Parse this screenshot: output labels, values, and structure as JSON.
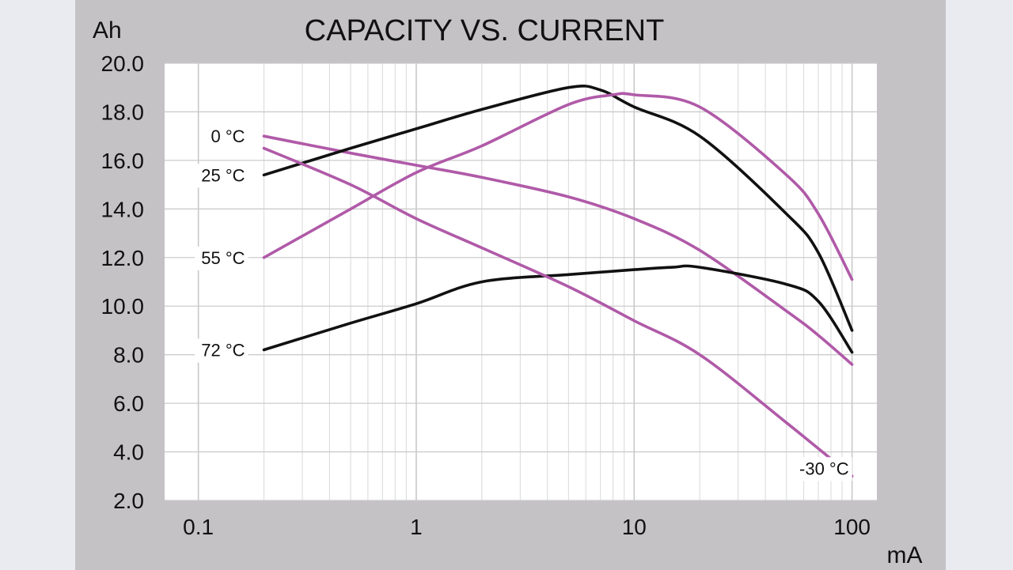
{
  "chart_data": {
    "type": "line",
    "title": "CAPACITY VS. CURRENT",
    "ylabel": "Ah",
    "xlabel": "mA",
    "xscale": "log",
    "xlim": [
      0.07,
      130
    ],
    "ylim": [
      2.0,
      20.0
    ],
    "grid": true,
    "x_ticks": [
      {
        "value": 0.1,
        "label": "0.1"
      },
      {
        "value": 1,
        "label": "1"
      },
      {
        "value": 10,
        "label": "10"
      },
      {
        "value": 100,
        "label": "100"
      }
    ],
    "y_ticks": [
      {
        "value": 2.0,
        "label": "2.0"
      },
      {
        "value": 4.0,
        "label": "4.0"
      },
      {
        "value": 6.0,
        "label": "6.0"
      },
      {
        "value": 8.0,
        "label": "8.0"
      },
      {
        "value": 10.0,
        "label": "10.0"
      },
      {
        "value": 12.0,
        "label": "12.0"
      },
      {
        "value": 14.0,
        "label": "14.0"
      },
      {
        "value": 16.0,
        "label": "16.0"
      },
      {
        "value": 18.0,
        "label": "18.0"
      },
      {
        "value": 20.0,
        "label": "20.0"
      }
    ],
    "series": [
      {
        "name": "0 °C",
        "color": "#b05aa8",
        "label_side": "left",
        "x": [
          0.2,
          0.5,
          1,
          2,
          5,
          10,
          20,
          50,
          70,
          100
        ],
        "y": [
          17.0,
          16.3,
          15.8,
          15.3,
          14.5,
          13.6,
          12.3,
          9.8,
          8.8,
          7.6
        ]
      },
      {
        "name": "25 °C",
        "color": "#111111",
        "label_side": "left",
        "x": [
          0.2,
          0.5,
          1,
          2,
          5,
          7,
          10,
          20,
          50,
          70,
          100
        ],
        "y": [
          15.4,
          16.5,
          17.3,
          18.1,
          19.0,
          18.9,
          18.2,
          17.0,
          13.8,
          12.2,
          9.0
        ]
      },
      {
        "name": "55 °C",
        "color": "#b05aa8",
        "label_side": "left",
        "x": [
          0.2,
          0.5,
          1,
          2,
          5,
          8,
          10,
          20,
          50,
          70,
          100
        ],
        "y": [
          12.0,
          14.0,
          15.5,
          16.6,
          18.3,
          18.7,
          18.7,
          18.2,
          15.4,
          13.8,
          11.1
        ]
      },
      {
        "name": "72 °C",
        "color": "#111111",
        "label_side": "left",
        "x": [
          0.2,
          0.5,
          1,
          2,
          5,
          10,
          15,
          20,
          50,
          70,
          100
        ],
        "y": [
          8.2,
          9.3,
          10.1,
          11.0,
          11.3,
          11.5,
          11.6,
          11.6,
          10.9,
          10.2,
          8.1
        ]
      },
      {
        "name": "-30 °C",
        "color": "#b05aa8",
        "label_side": "right",
        "x": [
          0.2,
          0.5,
          1,
          2,
          5,
          10,
          20,
          50,
          100
        ],
        "y": [
          16.5,
          15.0,
          13.6,
          12.4,
          10.8,
          9.4,
          8.0,
          5.2,
          3.0
        ]
      }
    ]
  }
}
